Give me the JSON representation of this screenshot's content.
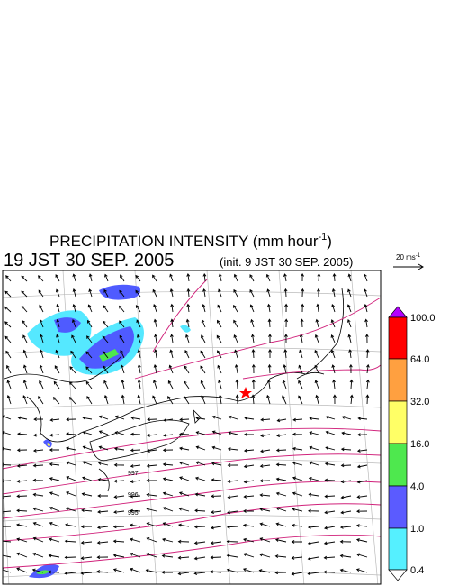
{
  "header": {
    "title": {
      "text": "PRECIPITATION INTENSITY (mm hour",
      "sup": "-1",
      "end": ")"
    },
    "valid_time": "19 JST 30 SEP. 2005",
    "init_time": "(init. 9 JST 30 SEP. 2005)"
  },
  "wind_scale": {
    "text": "20 ms",
    "sup": "-1"
  },
  "colorbar": {
    "labels": [
      "100.0",
      "64.0",
      "32.0",
      "16.0",
      "4.0",
      "1.0",
      "0.4"
    ]
  },
  "isobars": {
    "labels": [
      "997",
      "996",
      "995"
    ]
  }
}
